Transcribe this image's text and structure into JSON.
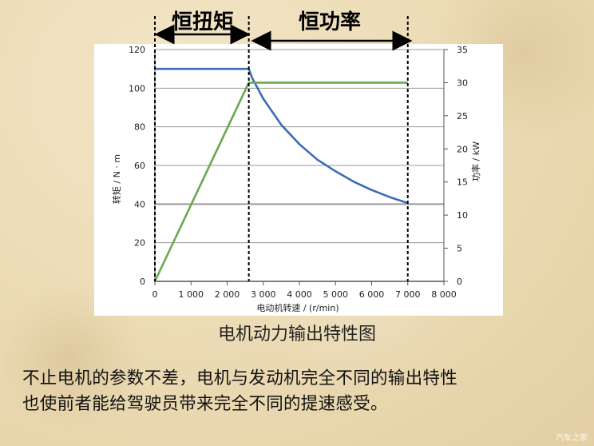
{
  "top_labels": {
    "constant_torque": "恒扭矩",
    "constant_power": "恒功率"
  },
  "caption": "电机动力输出特性图",
  "paragraph": [
    "不止电机的参数不差，电机与发动机完全不同的输出特性",
    "也使前者能给驾驶员带来完全不同的提速感受。"
  ],
  "watermark": "汽车之家",
  "colors": {
    "torque": "#3b6cb4",
    "power": "#6aa84f",
    "grid": "#9a9a9a"
  },
  "chart_data": {
    "type": "line",
    "title": "",
    "xlabel": "电动机转速 / (r/min)",
    "ylabel": "转矩 / N · m",
    "y2label": "功率 / kW",
    "xlim": [
      0,
      8000
    ],
    "ylim": [
      0,
      120
    ],
    "y2lim": [
      0,
      35
    ],
    "x_ticks": [
      "0",
      "1 000",
      "2 000",
      "3 000",
      "4 000",
      "5 000",
      "6 000",
      "7 000",
      "8 000"
    ],
    "x_tick_values": [
      0,
      1000,
      2000,
      3000,
      4000,
      5000,
      6000,
      7000,
      8000
    ],
    "y_ticks": [
      "0",
      "20",
      "40",
      "60",
      "80",
      "100",
      "120"
    ],
    "y_tick_values": [
      0,
      20,
      40,
      60,
      80,
      100,
      120
    ],
    "y2_ticks": [
      "0",
      "5",
      "10",
      "15",
      "20",
      "25",
      "30",
      "35"
    ],
    "y2_tick_values": [
      0,
      5,
      10,
      15,
      20,
      25,
      30,
      35
    ],
    "grid": true,
    "base_speed_rpm": 2600,
    "max_speed_rpm": 7000,
    "series": [
      {
        "axis": "left",
        "x": [
          0,
          2600,
          2700,
          3000,
          3500,
          4000,
          4500,
          5000,
          5500,
          6000,
          6500,
          7000
        ],
        "values": [
          110,
          110,
          105,
          94.5,
          81,
          71,
          63,
          57,
          51.6,
          47.3,
          43.6,
          40.5
        ]
      },
      {
        "axis": "right",
        "x": [
          0,
          2600,
          7000
        ],
        "values": [
          0,
          30,
          30
        ]
      }
    ]
  }
}
